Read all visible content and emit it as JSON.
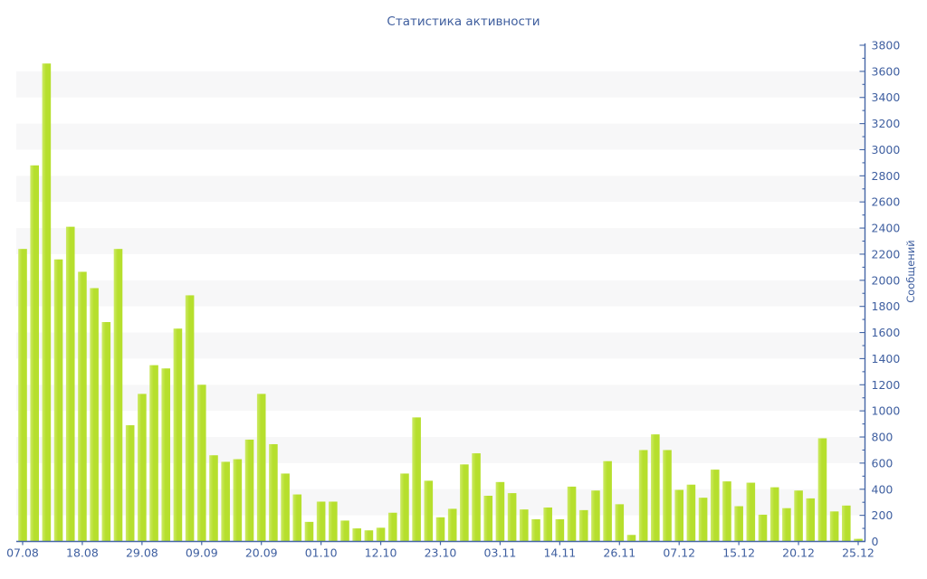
{
  "chart_data": {
    "type": "bar",
    "title": "Статистика активности",
    "ylabel": "Сообщений",
    "xlabel": "",
    "ylim": [
      0,
      3800
    ],
    "y_tick_step": 200,
    "y_minor_tick_step": 100,
    "grid": "alternating-horizontal-bands",
    "legend": "none",
    "x_tick_labels": [
      "07.08",
      "18.08",
      "29.08",
      "09.09",
      "20.09",
      "01.10",
      "12.10",
      "23.10",
      "03.11",
      "14.11",
      "26.11",
      "07.12",
      "15.12",
      "20.12",
      "25.12"
    ],
    "tick_every": 5,
    "values": [
      2240,
      2880,
      3660,
      2160,
      2410,
      2065,
      1940,
      1680,
      2240,
      890,
      1130,
      1350,
      1325,
      1630,
      1885,
      1200,
      660,
      610,
      630,
      780,
      1130,
      745,
      520,
      360,
      150,
      305,
      305,
      160,
      100,
      85,
      105,
      220,
      520,
      950,
      465,
      185,
      250,
      590,
      675,
      350,
      455,
      370,
      245,
      170,
      260,
      170,
      420,
      240,
      390,
      615,
      285,
      50,
      700,
      820,
      700,
      395,
      435,
      335,
      550,
      460,
      270,
      450,
      205,
      415,
      255,
      390,
      330,
      790,
      230,
      275,
      20
    ],
    "colors": {
      "bar": "#b6df2d",
      "bar_light": "#cdea66",
      "band": "#f7f7f8",
      "axis_line": "#4566a6",
      "tick_text": "#3f5fa0",
      "title_text": "#3f5e9e",
      "background": "#ffffff"
    }
  }
}
